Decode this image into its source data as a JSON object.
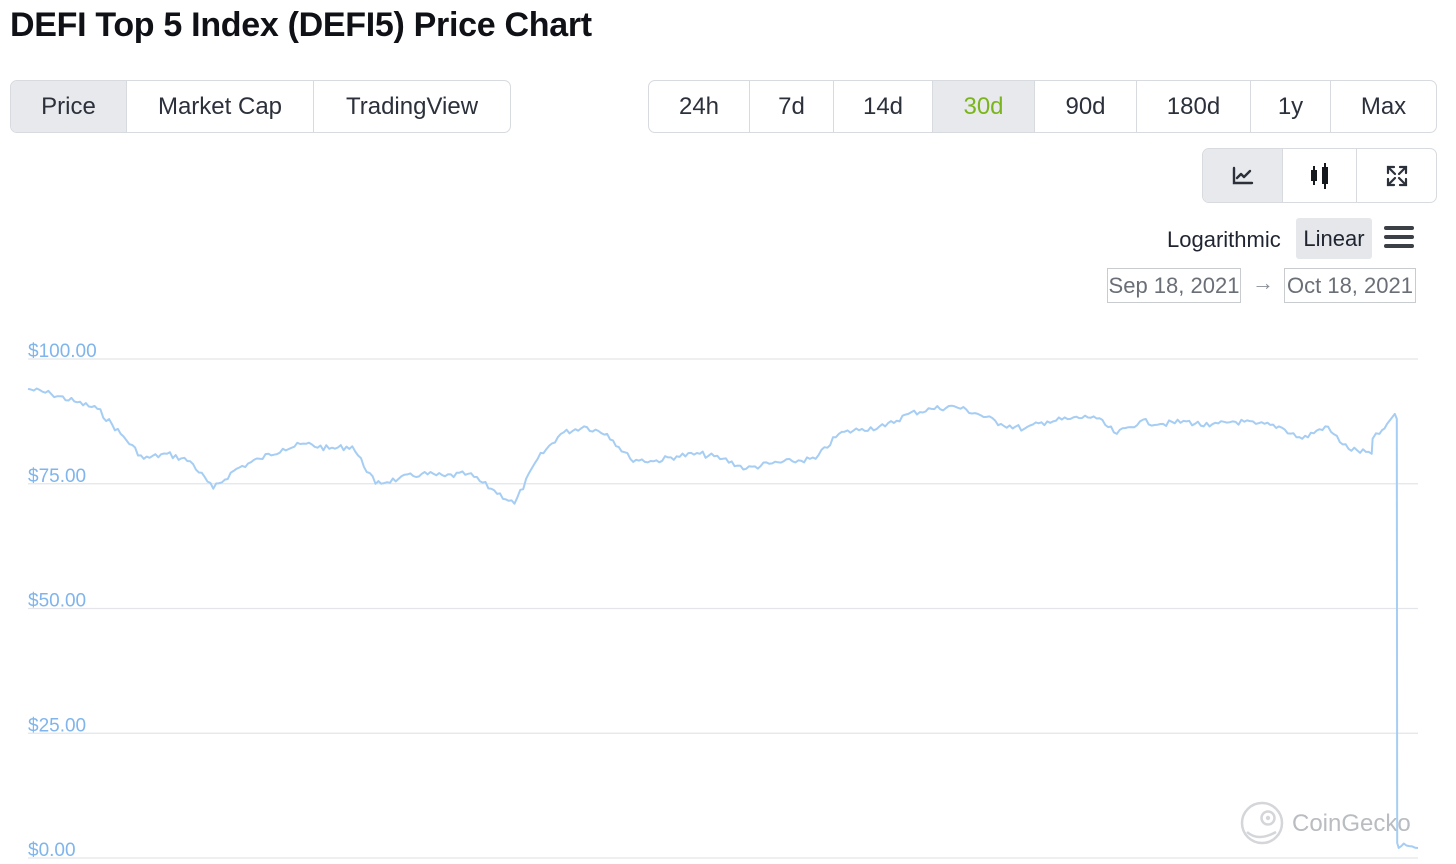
{
  "page": {
    "title": "DEFI Top 5 Index (DEFI5) Price Chart"
  },
  "chart_type_tabs": [
    {
      "label": "Price",
      "active": true
    },
    {
      "label": "Market Cap",
      "active": false
    },
    {
      "label": "TradingView",
      "active": false
    }
  ],
  "range_tabs": [
    {
      "label": "24h",
      "active": false
    },
    {
      "label": "7d",
      "active": false
    },
    {
      "label": "14d",
      "active": false
    },
    {
      "label": "30d",
      "active": true
    },
    {
      "label": "90d",
      "active": false
    },
    {
      "label": "180d",
      "active": false
    },
    {
      "label": "1y",
      "active": false
    },
    {
      "label": "Max",
      "active": false
    }
  ],
  "view_buttons": [
    {
      "icon": "line-chart-icon",
      "active": true
    },
    {
      "icon": "candlestick-icon",
      "active": false
    },
    {
      "icon": "expand-icon",
      "active": false
    }
  ],
  "scale": {
    "logarithmic_label": "Logarithmic",
    "linear_label": "Linear",
    "selected": "Linear",
    "menu_icon": "hamburger-menu-icon"
  },
  "date_range": {
    "from": "Sep 18, 2021",
    "arrow": "→",
    "to": "Oct 18, 2021"
  },
  "colors": {
    "accent_green": "#7ab51d",
    "line_blue": "#a6cdf3",
    "axis_label_blue": "#7fb5ec",
    "grid": "#e3e5e8"
  },
  "watermark": "CoinGecko",
  "chart_data": {
    "type": "line",
    "title": "",
    "xlabel": "",
    "ylabel": "",
    "x_range": [
      "2021-09-18",
      "2021-10-18"
    ],
    "ylim": [
      0,
      100
    ],
    "y_ticks": [
      0,
      25,
      50,
      75,
      100
    ],
    "y_tick_labels": [
      "$0.00",
      "$25.00",
      "$50.00",
      "$75.00",
      "$100.00"
    ],
    "grid": true,
    "legend": "none",
    "series": [
      {
        "color": "#a6cdf3",
        "points": [
          [
            "2021-09-18",
            94
          ],
          [
            "2021-09-18T12:00",
            93
          ],
          [
            "2021-09-19",
            91.5
          ],
          [
            "2021-09-19T12:00",
            90
          ],
          [
            "2021-09-20",
            85
          ],
          [
            "2021-09-20T12:00",
            80
          ],
          [
            "2021-09-21",
            81
          ],
          [
            "2021-09-21T12:00",
            79.5
          ],
          [
            "2021-09-22",
            74
          ],
          [
            "2021-09-22T12:00",
            78
          ],
          [
            "2021-09-23",
            80
          ],
          [
            "2021-09-23T12:00",
            82
          ],
          [
            "2021-09-24",
            83
          ],
          [
            "2021-09-24T12:00",
            82
          ],
          [
            "2021-09-25",
            82.5
          ],
          [
            "2021-09-25T12:00",
            75
          ],
          [
            "2021-09-26",
            76
          ],
          [
            "2021-09-26T12:00",
            77
          ],
          [
            "2021-09-27",
            76.5
          ],
          [
            "2021-09-27T12:00",
            77
          ],
          [
            "2021-09-28",
            74
          ],
          [
            "2021-09-28T12:00",
            71
          ],
          [
            "2021-09-29",
            80
          ],
          [
            "2021-09-29T12:00",
            85
          ],
          [
            "2021-09-30",
            86.5
          ],
          [
            "2021-09-30T12:00",
            85
          ],
          [
            "2021-10-01",
            80
          ],
          [
            "2021-10-01T12:00",
            79.5
          ],
          [
            "2021-10-02",
            80.5
          ],
          [
            "2021-10-02T12:00",
            81
          ],
          [
            "2021-10-03",
            80
          ],
          [
            "2021-10-03T12:00",
            78
          ],
          [
            "2021-10-04",
            79
          ],
          [
            "2021-10-04T12:00",
            79.5
          ],
          [
            "2021-10-05",
            80
          ],
          [
            "2021-10-05T12:00",
            85
          ],
          [
            "2021-10-06",
            86
          ],
          [
            "2021-10-06T12:00",
            86.5
          ],
          [
            "2021-10-07",
            89
          ],
          [
            "2021-10-07T12:00",
            90
          ],
          [
            "2021-10-08",
            90.5
          ],
          [
            "2021-10-08T12:00",
            89
          ],
          [
            "2021-10-09",
            87
          ],
          [
            "2021-10-09T12:00",
            86
          ],
          [
            "2021-10-10",
            87.5
          ],
          [
            "2021-10-10T12:00",
            88
          ],
          [
            "2021-10-11",
            88.5
          ],
          [
            "2021-10-11T12:00",
            85
          ],
          [
            "2021-10-12",
            87.5
          ],
          [
            "2021-10-12T12:00",
            87
          ],
          [
            "2021-10-13",
            87.5
          ],
          [
            "2021-10-13T12:00",
            86.5
          ],
          [
            "2021-10-14",
            87.5
          ],
          [
            "2021-10-14T12:00",
            87
          ],
          [
            "2021-10-15",
            86.5
          ],
          [
            "2021-10-15T12:00",
            84
          ],
          [
            "2021-10-16",
            86.5
          ],
          [
            "2021-10-16T12:00",
            82
          ],
          [
            "2021-10-17",
            81
          ],
          [
            "2021-10-17T00:30",
            84
          ],
          [
            "2021-10-17T04:00",
            85
          ],
          [
            "2021-10-17T08:00",
            87
          ],
          [
            "2021-10-17T10:00",
            88
          ],
          [
            "2021-10-17T12:00",
            89
          ],
          [
            "2021-10-17T13:00",
            88
          ],
          [
            "2021-10-17T13:15",
            3
          ],
          [
            "2021-10-17T14:00",
            2
          ],
          [
            "2021-10-17T18:00",
            2.5
          ],
          [
            "2021-10-18",
            2
          ]
        ]
      }
    ]
  }
}
